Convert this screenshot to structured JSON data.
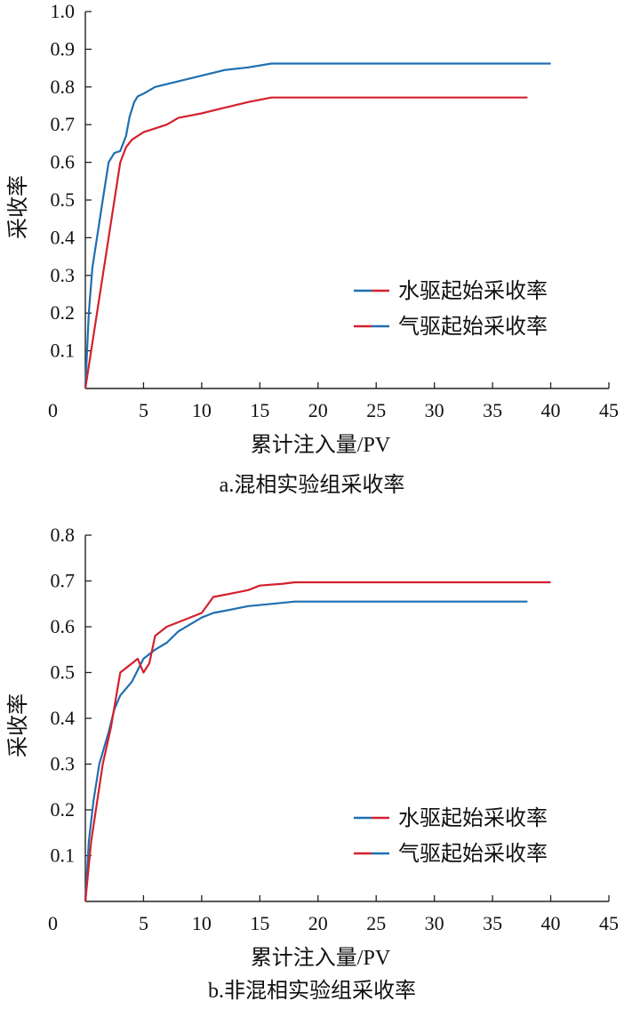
{
  "colors": {
    "water": "#1f6fb0",
    "gas": "#d4202c",
    "axis": "#222222"
  },
  "chart_data": [
    {
      "type": "line",
      "caption": "a.混相实验组采收率",
      "xlabel": "累计注入量/PV",
      "ylabel": "采收率",
      "xlim": [
        0,
        45
      ],
      "ylim": [
        0,
        1.0
      ],
      "xticks": [
        0,
        5,
        10,
        15,
        20,
        25,
        30,
        35,
        40,
        45
      ],
      "yticks": [
        0.1,
        0.2,
        0.3,
        0.4,
        0.5,
        0.6,
        0.7,
        0.8,
        0.9,
        1.0
      ],
      "xtick_labels": [
        "0",
        "5",
        "10",
        "15",
        "20",
        "25",
        "30",
        "35",
        "40",
        "45"
      ],
      "ytick_labels": [
        "0.1",
        "0.2",
        "0.3",
        "0.4",
        "0.5",
        "0.6",
        "0.7",
        "0.8",
        "0.9",
        "1.0"
      ],
      "legend_position": "lower-right",
      "series": [
        {
          "name": "水驱起始采收率",
          "color_key": "water",
          "points": [
            [
              0,
              0
            ],
            [
              0.3,
              0.2
            ],
            [
              0.6,
              0.32
            ],
            [
              1,
              0.4
            ],
            [
              1.5,
              0.5
            ],
            [
              2,
              0.6
            ],
            [
              2.5,
              0.625
            ],
            [
              3,
              0.63
            ],
            [
              3.5,
              0.67
            ],
            [
              3.8,
              0.72
            ],
            [
              4.2,
              0.76
            ],
            [
              4.5,
              0.775
            ],
            [
              5,
              0.782
            ],
            [
              6,
              0.8
            ],
            [
              8,
              0.815
            ],
            [
              10,
              0.83
            ],
            [
              12,
              0.845
            ],
            [
              14,
              0.852
            ],
            [
              16,
              0.862
            ],
            [
              18,
              0.862
            ],
            [
              22,
              0.862
            ],
            [
              26,
              0.862
            ],
            [
              30,
              0.862
            ],
            [
              34,
              0.862
            ],
            [
              38,
              0.862
            ],
            [
              40,
              0.862
            ]
          ]
        },
        {
          "name": "气驱起始采收率",
          "color_key": "gas",
          "points": [
            [
              0,
              0
            ],
            [
              1,
              0.2
            ],
            [
              2,
              0.4
            ],
            [
              3,
              0.6
            ],
            [
              3.5,
              0.64
            ],
            [
              4,
              0.66
            ],
            [
              5,
              0.68
            ],
            [
              6,
              0.69
            ],
            [
              7,
              0.7
            ],
            [
              8,
              0.718
            ],
            [
              10,
              0.73
            ],
            [
              12,
              0.745
            ],
            [
              14,
              0.76
            ],
            [
              16,
              0.772
            ],
            [
              20,
              0.772
            ],
            [
              24,
              0.772
            ],
            [
              28,
              0.772
            ],
            [
              32,
              0.772
            ],
            [
              36,
              0.772
            ],
            [
              38,
              0.772
            ]
          ]
        }
      ]
    },
    {
      "type": "line",
      "caption": "b.非混相实验组采收率",
      "xlabel": "累计注入量/PV",
      "ylabel": "采收率",
      "xlim": [
        0,
        45
      ],
      "ylim": [
        0,
        0.8
      ],
      "xticks": [
        0,
        5,
        10,
        15,
        20,
        25,
        30,
        35,
        40,
        45
      ],
      "yticks": [
        0.1,
        0.2,
        0.3,
        0.4,
        0.5,
        0.6,
        0.7,
        0.8
      ],
      "xtick_labels": [
        "0",
        "5",
        "10",
        "15",
        "20",
        "25",
        "30",
        "35",
        "40",
        "45"
      ],
      "ytick_labels": [
        "0.1",
        "0.2",
        "0.3",
        "0.4",
        "0.5",
        "0.6",
        "0.7",
        "0.8"
      ],
      "legend_position": "lower-right",
      "series": [
        {
          "name": "水驱起始采收率",
          "color_key": "water",
          "points": [
            [
              0,
              0
            ],
            [
              0.3,
              0.13
            ],
            [
              0.7,
              0.22
            ],
            [
              1.2,
              0.3
            ],
            [
              2,
              0.37
            ],
            [
              2.5,
              0.42
            ],
            [
              3,
              0.45
            ],
            [
              4,
              0.48
            ],
            [
              5,
              0.53
            ],
            [
              6,
              0.55
            ],
            [
              7,
              0.565
            ],
            [
              8,
              0.59
            ],
            [
              10,
              0.62
            ],
            [
              11,
              0.63
            ],
            [
              12,
              0.635
            ],
            [
              14,
              0.645
            ],
            [
              16,
              0.65
            ],
            [
              18,
              0.655
            ],
            [
              22,
              0.655
            ],
            [
              26,
              0.655
            ],
            [
              30,
              0.655
            ],
            [
              34,
              0.655
            ],
            [
              38,
              0.655
            ]
          ]
        },
        {
          "name": "气驱起始采收率",
          "color_key": "gas",
          "points": [
            [
              0,
              0
            ],
            [
              0.5,
              0.13
            ],
            [
              1.5,
              0.3
            ],
            [
              2.2,
              0.38
            ],
            [
              3,
              0.5
            ],
            [
              4,
              0.52
            ],
            [
              4.5,
              0.53
            ],
            [
              5,
              0.5
            ],
            [
              5.5,
              0.52
            ],
            [
              6,
              0.58
            ],
            [
              7,
              0.6
            ],
            [
              8,
              0.61
            ],
            [
              10,
              0.63
            ],
            [
              11,
              0.665
            ],
            [
              12,
              0.67
            ],
            [
              14,
              0.68
            ],
            [
              15,
              0.69
            ],
            [
              17,
              0.694
            ],
            [
              18,
              0.697
            ],
            [
              22,
              0.697
            ],
            [
              26,
              0.697
            ],
            [
              30,
              0.697
            ],
            [
              34,
              0.697
            ],
            [
              38,
              0.697
            ],
            [
              40,
              0.697
            ]
          ]
        }
      ]
    }
  ]
}
